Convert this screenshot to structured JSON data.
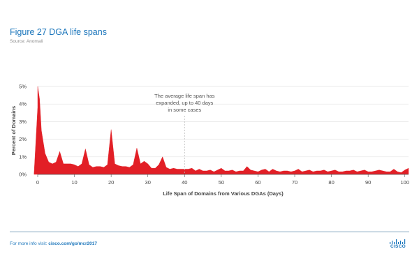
{
  "figure": {
    "title": "Figure 27  DGA life spans",
    "source": "Source: Anomali"
  },
  "footer": {
    "prefix": "For more info visit: ",
    "link": "cisco.com/go/mcr2017",
    "logo_text": "CISCO"
  },
  "colors": {
    "area_fill": "#e21f26",
    "title": "#1a75bb",
    "axis": "#555555",
    "annotation_line": "#bbbbbb"
  },
  "chart_data": {
    "type": "area",
    "title": "",
    "xlabel": "Life Span of Domains from Various DGAs (Days)",
    "ylabel": "Percent of Domains",
    "xlim": [
      0,
      101
    ],
    "ylim": [
      0,
      5
    ],
    "x_ticks": [
      0,
      10,
      20,
      30,
      40,
      50,
      60,
      70,
      80,
      90,
      100
    ],
    "y_ticks": [
      0,
      1,
      2,
      3,
      4,
      5
    ],
    "y_tick_labels": [
      "0%",
      "1%",
      "2%",
      "3%",
      "4%",
      "5%"
    ],
    "grid": true,
    "legend": "none",
    "annotation": {
      "x": 40,
      "lines": [
        "The average life span has",
        "expanded, up to 40 days",
        "in some cases"
      ]
    },
    "series": [
      {
        "x": [
          -1,
          -0.5,
          0,
          0.5,
          1,
          2,
          3,
          4,
          5,
          6,
          7,
          8,
          9,
          10,
          11,
          12,
          13,
          14,
          15,
          16,
          17,
          18,
          19,
          20,
          21,
          22,
          23,
          24,
          25,
          26,
          27,
          28,
          29,
          30,
          31,
          32,
          33,
          34,
          35,
          36,
          37,
          38,
          39,
          40,
          41,
          42,
          43,
          44,
          45,
          46,
          47,
          48,
          49,
          50,
          51,
          52,
          53,
          54,
          55,
          56,
          57,
          58,
          59,
          60,
          61,
          62,
          63,
          64,
          65,
          66,
          67,
          68,
          69,
          70,
          71,
          72,
          73,
          74,
          75,
          76,
          77,
          78,
          79,
          80,
          81,
          82,
          83,
          84,
          85,
          86,
          87,
          88,
          89,
          90,
          91,
          92,
          93,
          94,
          95,
          96,
          97,
          98,
          99,
          100,
          101
        ],
        "values": [
          3.8,
          4.5,
          5.0,
          4.3,
          2.5,
          1.2,
          0.7,
          0.6,
          0.7,
          1.3,
          0.6,
          0.6,
          0.6,
          0.55,
          0.45,
          0.6,
          1.45,
          0.55,
          0.4,
          0.45,
          0.45,
          0.4,
          0.55,
          2.55,
          0.6,
          0.5,
          0.45,
          0.45,
          0.4,
          0.55,
          1.5,
          0.6,
          0.75,
          0.6,
          0.35,
          0.35,
          0.55,
          1.0,
          0.4,
          0.3,
          0.35,
          0.3,
          0.3,
          0.3,
          0.3,
          0.35,
          0.2,
          0.3,
          0.2,
          0.2,
          0.25,
          0.15,
          0.25,
          0.35,
          0.2,
          0.2,
          0.25,
          0.15,
          0.2,
          0.2,
          0.45,
          0.25,
          0.2,
          0.15,
          0.25,
          0.3,
          0.15,
          0.3,
          0.2,
          0.15,
          0.2,
          0.2,
          0.15,
          0.2,
          0.3,
          0.15,
          0.2,
          0.25,
          0.15,
          0.2,
          0.2,
          0.25,
          0.15,
          0.2,
          0.25,
          0.15,
          0.15,
          0.2,
          0.2,
          0.25,
          0.15,
          0.2,
          0.25,
          0.15,
          0.15,
          0.2,
          0.25,
          0.2,
          0.15,
          0.15,
          0.3,
          0.15,
          0.1,
          0.25,
          0.35
        ]
      }
    ]
  }
}
